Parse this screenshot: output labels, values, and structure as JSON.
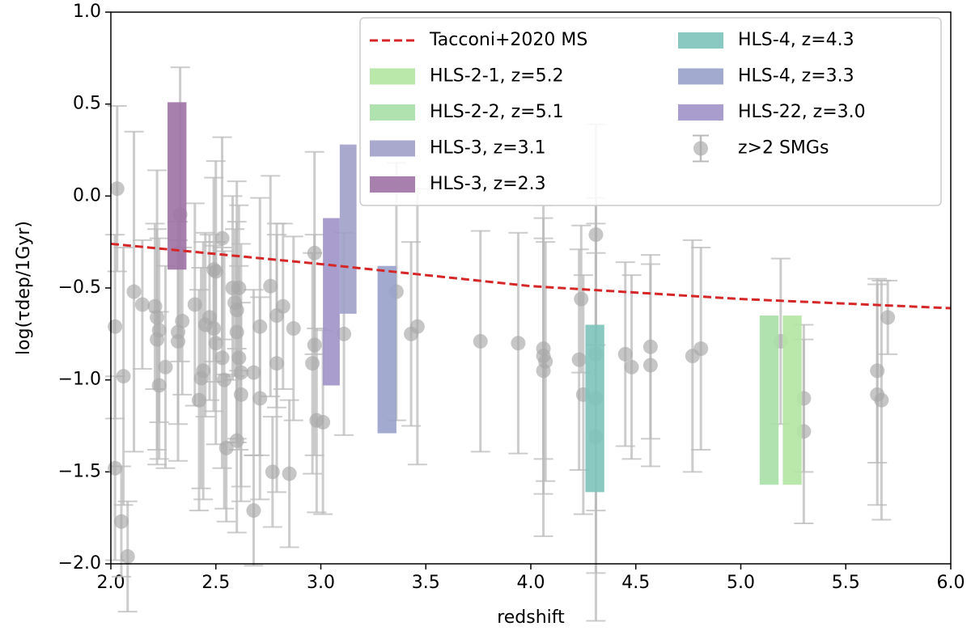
{
  "chart_data": {
    "type": "scatter",
    "xlabel": "redshift",
    "ylabel": "log(τdep/1Gyr)",
    "xlim": [
      2.0,
      6.0
    ],
    "xticks": [
      {
        "value": 2.0,
        "label": "2.0"
      },
      {
        "value": 2.5,
        "label": "2.5"
      },
      {
        "value": 3.0,
        "label": "3.0"
      },
      {
        "value": 3.5,
        "label": "3.5"
      },
      {
        "value": 4.0,
        "label": "4.0"
      },
      {
        "value": 4.5,
        "label": "4.5"
      },
      {
        "value": 5.0,
        "label": "5.0"
      },
      {
        "value": 5.5,
        "label": "5.5"
      },
      {
        "value": 6.0,
        "label": "6.0"
      }
    ],
    "ylim": [
      -2.0,
      1.0
    ],
    "yticks": [
      {
        "value": -2.0,
        "label": "−2.0"
      },
      {
        "value": -1.5,
        "label": "−1.5"
      },
      {
        "value": -1.0,
        "label": "−1.0"
      },
      {
        "value": -0.5,
        "label": "−0.5"
      },
      {
        "value": 0.0,
        "label": "0.0"
      },
      {
        "value": 0.5,
        "label": "0.5"
      },
      {
        "value": 1.0,
        "label": "1.0"
      }
    ],
    "line": {
      "name": "Tacconi+2020 MS",
      "color": "#d62728",
      "x": [
        2.0,
        3.0,
        4.0,
        5.0,
        6.0
      ],
      "values": [
        -0.26,
        -0.37,
        -0.49,
        -0.56,
        -0.61
      ]
    },
    "boxes": [
      {
        "name": "HLS-2-1, z=5.2",
        "color": "#b3e6a1",
        "x": [
          5.2,
          5.29
        ],
        "y": [
          -1.57,
          -0.65
        ]
      },
      {
        "name": "HLS-2-2, z=5.1",
        "color": "#a6dfa6",
        "x": [
          5.09,
          5.18
        ],
        "y": [
          -1.57,
          -0.65
        ]
      },
      {
        "name": "HLS-3, z=3.1",
        "color": "#a09fc8",
        "x": [
          3.09,
          3.17
        ],
        "y": [
          -0.64,
          0.28
        ]
      },
      {
        "name": "HLS-3, z=2.3",
        "color": "#9d72a5",
        "x": [
          2.27,
          2.36
        ],
        "y": [
          -0.4,
          0.51
        ]
      },
      {
        "name": "HLS-4, z=4.3",
        "color": "#7cc3bb",
        "x": [
          4.26,
          4.35
        ],
        "y": [
          -1.61,
          -0.7
        ]
      },
      {
        "name": "HLS-4, z=3.3",
        "color": "#98a2ca",
        "x": [
          3.27,
          3.36
        ],
        "y": [
          -1.29,
          -0.38
        ]
      },
      {
        "name": "HLS-22, z=3.0",
        "color": "#a092c8",
        "x": [
          3.01,
          3.09
        ],
        "y": [
          -1.03,
          -0.12
        ]
      }
    ],
    "scatter": {
      "name": "z>2 SMGs",
      "color": "#a8a8a8",
      "x": [
        2.03,
        2.02,
        2.06,
        2.02,
        2.05,
        2.08,
        2.11,
        2.15,
        2.21,
        2.22,
        2.23,
        2.22,
        2.23,
        2.26,
        2.33,
        2.32,
        2.34,
        2.32,
        2.4,
        2.42,
        2.43,
        2.44,
        2.45,
        2.47,
        2.49,
        2.5,
        2.49,
        2.5,
        2.53,
        2.54,
        2.55,
        2.53,
        2.58,
        2.59,
        2.6,
        2.61,
        2.6,
        2.61,
        2.62,
        2.62,
        2.6,
        2.68,
        2.68,
        2.71,
        2.71,
        2.76,
        2.79,
        2.79,
        2.82,
        2.77,
        2.85,
        2.87,
        2.97,
        2.97,
        2.96,
        2.98,
        3.01,
        3.11,
        3.36,
        3.43,
        3.46,
        3.76,
        3.94,
        4.06,
        4.06,
        4.06,
        4.07,
        4.23,
        4.24,
        4.25,
        4.31,
        4.31,
        4.31,
        4.31,
        4.45,
        4.48,
        4.57,
        4.57,
        4.77,
        4.81,
        5.19,
        5.3,
        5.3,
        5.65,
        5.65,
        5.67,
        5.7
      ],
      "values": [
        0.04,
        -0.71,
        -0.98,
        -1.48,
        -1.77,
        -1.96,
        -0.52,
        -0.59,
        -0.6,
        -0.66,
        -0.73,
        -0.78,
        -1.03,
        -0.93,
        -0.1,
        -0.79,
        -0.68,
        -0.74,
        -0.59,
        -1.11,
        -0.99,
        -0.95,
        -0.7,
        -0.66,
        -0.4,
        -0.41,
        -0.72,
        -0.8,
        -0.88,
        -1.0,
        -1.37,
        -0.23,
        -0.5,
        -0.58,
        -0.62,
        -0.5,
        -0.74,
        -0.88,
        -0.96,
        -1.08,
        -1.33,
        -0.96,
        -1.71,
        -0.71,
        -1.1,
        -0.49,
        -0.65,
        -0.91,
        -0.6,
        -1.5,
        -1.51,
        -0.72,
        -0.31,
        -0.81,
        -0.91,
        -1.22,
        -1.23,
        -0.75,
        -0.52,
        -0.75,
        -0.71,
        -0.79,
        -0.8,
        -0.83,
        -0.87,
        -0.95,
        -0.9,
        -0.89,
        -0.56,
        -1.08,
        -0.21,
        -0.86,
        -1.1,
        -1.31,
        -0.86,
        -0.93,
        -0.82,
        -0.92,
        -0.87,
        -0.83,
        -0.79,
        -1.1,
        -1.28,
        -0.95,
        -1.08,
        -1.11,
        -0.66
      ],
      "errors": [
        0.45,
        0.5,
        0.7,
        0.5,
        0.3,
        0.3,
        0.87,
        0.35,
        0.45,
        0.8,
        0.5,
        0.6,
        0.4,
        0.55,
        0.8,
        0.65,
        0.4,
        0.5,
        0.55,
        0.6,
        0.6,
        0.7,
        0.5,
        0.45,
        0.5,
        0.6,
        0.45,
        0.55,
        0.6,
        0.7,
        0.4,
        0.55,
        0.5,
        0.4,
        0.7,
        0.45,
        0.6,
        0.5,
        0.7,
        0.5,
        0.5,
        0.45,
        0.3,
        0.7,
        0.55,
        0.6,
        0.5,
        0.7,
        0.45,
        0.3,
        0.4,
        0.5,
        0.55,
        0.6,
        0.6,
        0.5,
        0.5,
        0.55,
        0.7,
        0.5,
        0.75,
        0.6,
        0.6,
        0.6,
        0.75,
        0.9,
        0.65,
        0.6,
        0.4,
        0.65,
        0.6,
        0.85,
        0.95,
        1.0,
        0.5,
        0.5,
        0.5,
        0.55,
        0.63,
        0.55,
        0.45,
        0.4,
        0.5,
        0.5,
        0.6,
        0.65,
        0.2
      ]
    }
  }
}
